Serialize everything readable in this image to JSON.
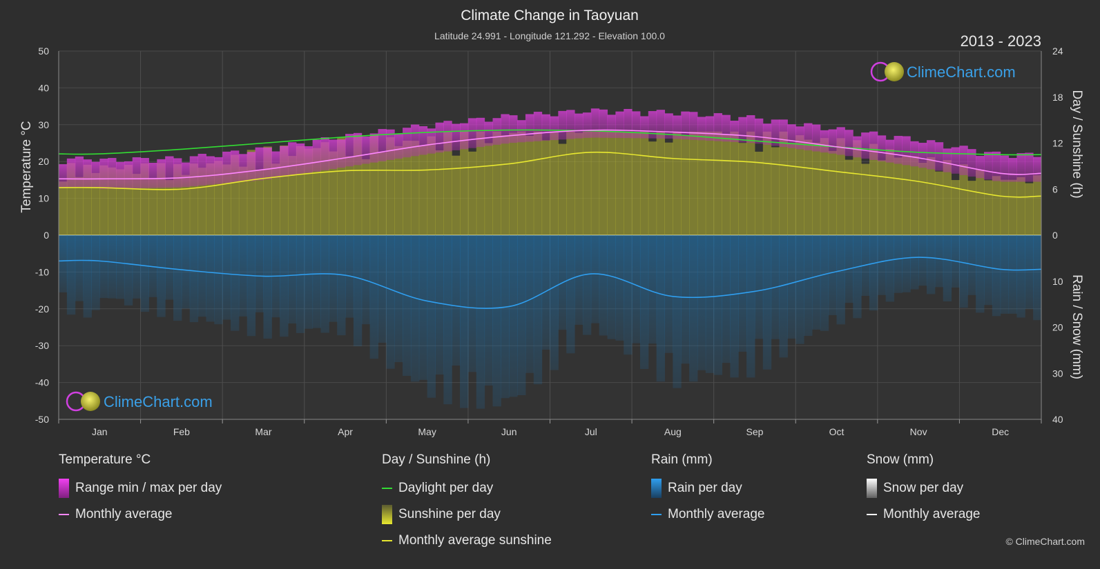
{
  "header": {
    "title": "Climate Change in Taoyuan",
    "subtitle": "Latitude 24.991 - Longitude 121.292 - Elevation 100.0",
    "period": "2013 - 2023"
  },
  "brand": {
    "name": "ClimeChart.com"
  },
  "copyright": "© ClimeChart.com",
  "colors": {
    "background": "#2e2e2e",
    "temp_range": "#d020d0",
    "temp_avg": "#ff88ff",
    "daylight": "#33dd33",
    "sunshine_bar": "#b8b832",
    "sunshine_avg": "#e8e830",
    "rain_bar": "#1a6fa8",
    "rain_avg": "#2f9ff0",
    "snow_avg": "#ffffff",
    "brand": "#3aa0e8"
  },
  "chart_data": {
    "type": "area",
    "x_categories": [
      "Jan",
      "Feb",
      "Mar",
      "Apr",
      "May",
      "Jun",
      "Jul",
      "Aug",
      "Sep",
      "Oct",
      "Nov",
      "Dec"
    ],
    "left_axis": {
      "title": "Temperature °C",
      "range": [
        -50,
        50
      ],
      "ticks": [
        50,
        40,
        30,
        20,
        10,
        0,
        -10,
        -20,
        -30,
        -40,
        -50
      ]
    },
    "right_axis_top": {
      "title": "Day / Sunshine (h)",
      "range": [
        0,
        24
      ],
      "ticks": [
        24,
        18,
        12,
        6,
        0
      ]
    },
    "right_axis_bottom": {
      "title": "Rain / Snow (mm)",
      "range": [
        0,
        40
      ],
      "ticks": [
        10,
        20,
        30,
        40
      ]
    },
    "grid": true,
    "series": [
      {
        "name": "Monthly average",
        "group": "Temperature °C",
        "unit": "°C",
        "values": [
          15.3,
          15.6,
          17.8,
          21.0,
          24.5,
          27.0,
          28.5,
          28.0,
          26.8,
          24.0,
          21.0,
          16.8
        ]
      },
      {
        "name": "Range min / max per day",
        "group": "Temperature °C",
        "unit": "°C",
        "min": [
          12.5,
          13.0,
          15.0,
          18.5,
          22.0,
          25.0,
          26.5,
          26.2,
          25.0,
          22.0,
          18.5,
          14.5
        ],
        "max": [
          19.0,
          19.5,
          22.0,
          25.5,
          28.5,
          31.0,
          32.5,
          32.0,
          30.5,
          27.5,
          24.5,
          20.5
        ]
      },
      {
        "name": "Daylight per day",
        "group": "Day / Sunshine (h)",
        "unit": "h",
        "values": [
          10.6,
          11.2,
          12.0,
          12.8,
          13.4,
          13.7,
          13.6,
          13.1,
          12.3,
          11.5,
          10.8,
          10.5
        ]
      },
      {
        "name": "Monthly average sunshine",
        "group": "Day / Sunshine (h)",
        "unit": "h",
        "values": [
          6.2,
          6.0,
          7.4,
          8.4,
          8.5,
          9.3,
          10.8,
          10.0,
          9.5,
          8.3,
          7.0,
          5.1
        ]
      },
      {
        "name": "Monthly average",
        "group": "Rain (mm)",
        "unit": "mm",
        "values": [
          5.6,
          7.5,
          8.9,
          8.7,
          14.3,
          15.5,
          8.4,
          13.3,
          12.2,
          7.9,
          4.8,
          7.4
        ]
      },
      {
        "name": "Monthly average",
        "group": "Snow (mm)",
        "unit": "mm",
        "values": [
          0,
          0,
          0,
          0,
          0,
          0,
          0,
          0,
          0,
          0,
          0,
          0
        ]
      }
    ]
  },
  "legend": {
    "groups": [
      {
        "title": "Temperature °C",
        "items": [
          {
            "kind": "box",
            "label": "Range min / max per day"
          },
          {
            "kind": "line",
            "label": "Monthly average"
          }
        ]
      },
      {
        "title": "Day / Sunshine (h)",
        "items": [
          {
            "kind": "line",
            "label": "Daylight per day"
          },
          {
            "kind": "box",
            "label": "Sunshine per day"
          },
          {
            "kind": "line",
            "label": "Monthly average sunshine"
          }
        ]
      },
      {
        "title": "Rain (mm)",
        "items": [
          {
            "kind": "box",
            "label": "Rain per day"
          },
          {
            "kind": "line",
            "label": "Monthly average"
          }
        ]
      },
      {
        "title": "Snow (mm)",
        "items": [
          {
            "kind": "box",
            "label": "Snow per day"
          },
          {
            "kind": "line",
            "label": "Monthly average"
          }
        ]
      }
    ]
  }
}
